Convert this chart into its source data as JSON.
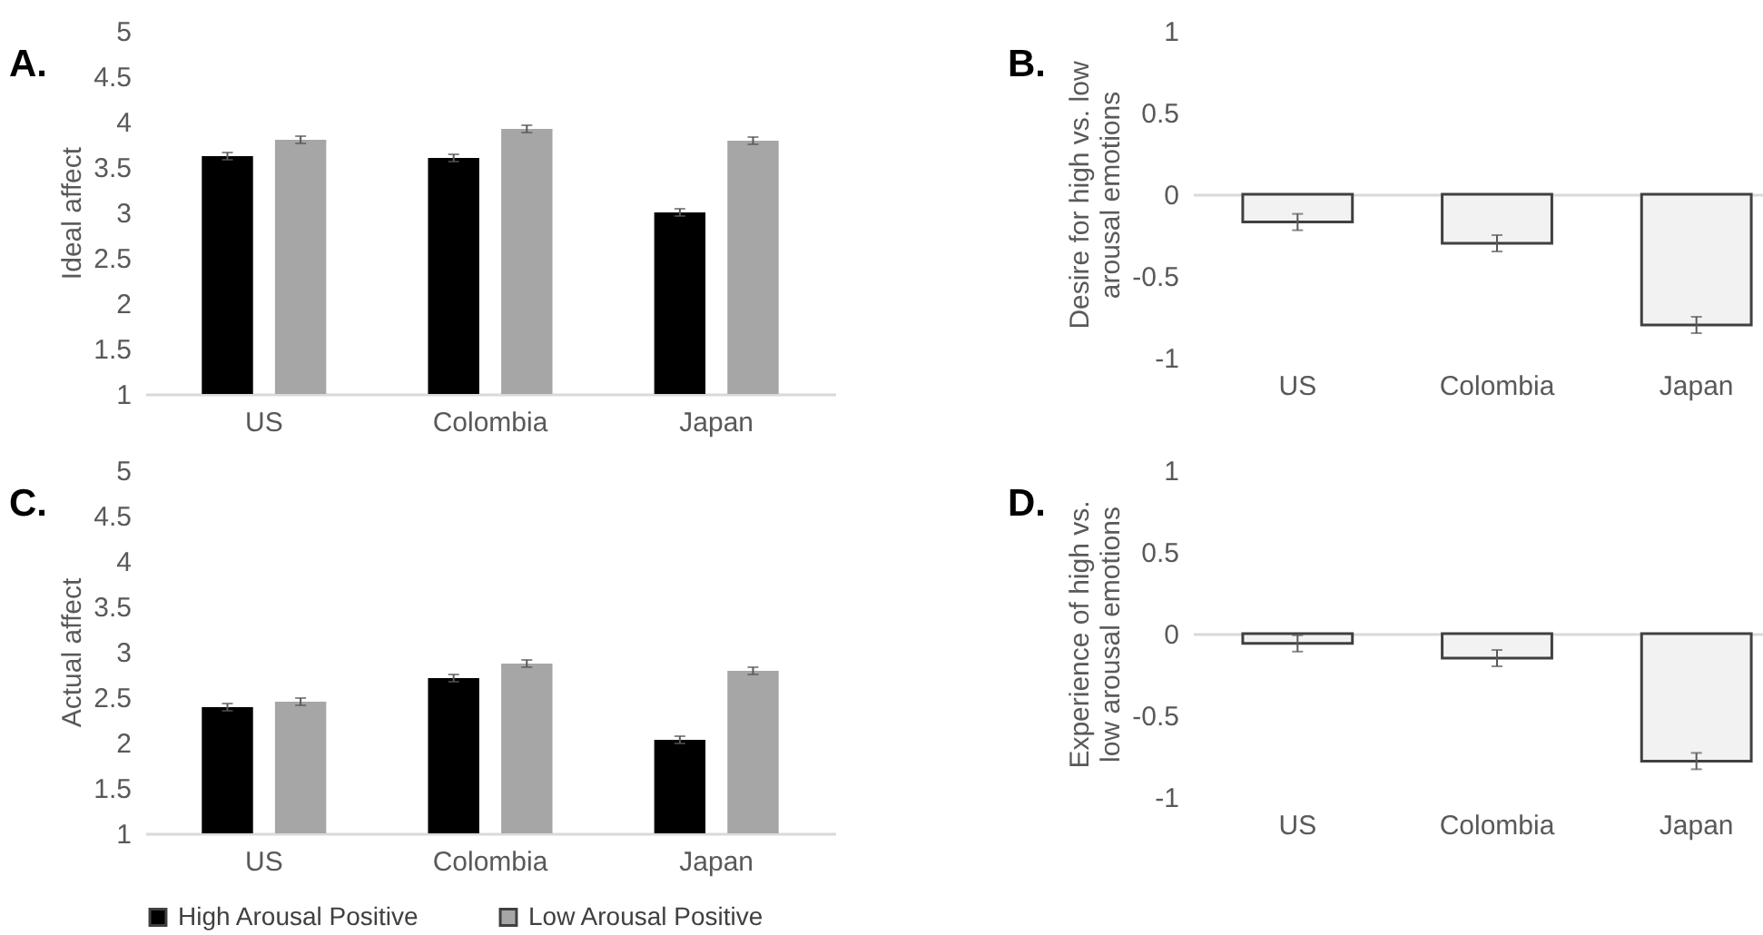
{
  "chart_data": [
    {
      "type": "bar",
      "title": "A.",
      "ylabel": "Ideal affect",
      "categories": [
        "US",
        "Colombia",
        "Japan"
      ],
      "series": [
        {
          "color": "#000000",
          "values": [
            3.62,
            3.6,
            3.0
          ],
          "errors": [
            0.04,
            0.04,
            0.04
          ]
        },
        {
          "color": "#a6a6a6",
          "values": [
            3.8,
            3.92,
            3.79
          ],
          "errors": [
            0.04,
            0.04,
            0.04
          ]
        }
      ],
      "ylim": [
        1,
        5
      ],
      "yticks": [
        1,
        1.5,
        2,
        2.5,
        3,
        3.5,
        4,
        4.5,
        5
      ]
    },
    {
      "type": "bar",
      "title": "B.",
      "ylabel": "Desire for high vs. low arousal emotions",
      "categories": [
        "US",
        "Colombia",
        "Japan"
      ],
      "series": [
        {
          "color": "#f2f2f2",
          "values": [
            -0.17,
            -0.3,
            -0.8
          ],
          "errors": [
            0.05,
            0.05,
            0.05
          ]
        }
      ],
      "ylim": [
        -1,
        1
      ],
      "yticks": [
        -1,
        -0.5,
        0,
        0.5,
        1
      ]
    },
    {
      "type": "bar",
      "title": "C.",
      "ylabel": "Actual affect",
      "categories": [
        "US",
        "Colombia",
        "Japan"
      ],
      "series": [
        {
          "name": "High Arousal Positive",
          "color": "#000000",
          "values": [
            2.39,
            2.71,
            2.03
          ],
          "errors": [
            0.04,
            0.04,
            0.04
          ]
        },
        {
          "name": "Low Arousal Positive",
          "color": "#a6a6a6",
          "values": [
            2.45,
            2.87,
            2.79
          ],
          "errors": [
            0.04,
            0.04,
            0.04
          ]
        }
      ],
      "ylim": [
        1,
        5
      ],
      "yticks": [
        1,
        1.5,
        2,
        2.5,
        3,
        3.5,
        4,
        4.5,
        5
      ],
      "legend": "bottom"
    },
    {
      "type": "bar",
      "title": "D.",
      "ylabel": "Experience of high vs. low arousal emotions",
      "categories": [
        "US",
        "Colombia",
        "Japan"
      ],
      "series": [
        {
          "color": "#f2f2f2",
          "values": [
            -0.06,
            -0.15,
            -0.78
          ],
          "errors": [
            0.05,
            0.05,
            0.05
          ]
        }
      ],
      "ylim": [
        -1,
        1
      ],
      "yticks": [
        -1,
        -0.5,
        0,
        0.5,
        1
      ]
    }
  ]
}
